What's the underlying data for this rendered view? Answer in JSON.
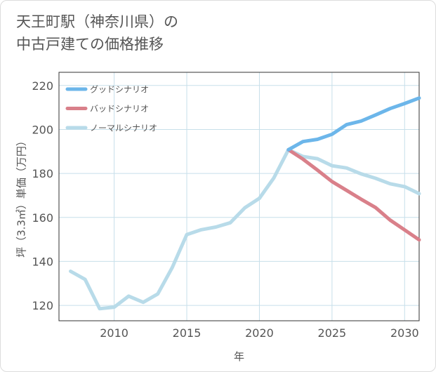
{
  "title_line1": "天王町駅（神奈川県）の",
  "title_line2": "中古戸建ての価格推移",
  "chart_data": {
    "type": "line",
    "xlabel": "年",
    "ylabel": "坪（3.3㎡）単価（万円）",
    "xlim": [
      2006.2,
      2031
    ],
    "ylim": [
      113,
      226
    ],
    "xticks": [
      2010,
      2015,
      2020,
      2025,
      2030
    ],
    "yticks": [
      120,
      140,
      160,
      180,
      200,
      220
    ],
    "grid": true,
    "legend_position": "top-left",
    "series": [
      {
        "name": "グッドシナリオ",
        "color": "#6cb6ea",
        "x": [
          2022,
          2023,
          2024,
          2025,
          2026,
          2027,
          2028,
          2029,
          2030,
          2031
        ],
        "y": [
          190.8,
          194.5,
          195.5,
          197.8,
          202.2,
          203.8,
          206.6,
          209.5,
          211.8,
          214.3
        ]
      },
      {
        "name": "バッドシナリオ",
        "color": "#d9808a",
        "x": [
          2022,
          2023,
          2024,
          2025,
          2026,
          2027,
          2028,
          2029,
          2030,
          2031
        ],
        "y": [
          190.8,
          186.5,
          181.5,
          176.3,
          172.3,
          168.3,
          164.5,
          158.8,
          154.3,
          149.8
        ]
      },
      {
        "name": "ノーマルシナリオ",
        "color": "#b8dbe9",
        "x": [
          2007,
          2008,
          2009,
          2010,
          2011,
          2012,
          2013,
          2014,
          2015,
          2016,
          2017,
          2018,
          2019,
          2020,
          2021,
          2022,
          2023,
          2024,
          2025,
          2026,
          2027,
          2028,
          2029,
          2030,
          2031
        ],
        "y": [
          135.5,
          131.8,
          118.5,
          119.2,
          124.2,
          121.4,
          125.2,
          137.2,
          152.2,
          154.4,
          155.6,
          157.6,
          164.4,
          168.7,
          178.0,
          190.8,
          187.7,
          186.7,
          183.5,
          182.5,
          179.8,
          177.8,
          175.3,
          174.0,
          170.8
        ]
      }
    ]
  }
}
